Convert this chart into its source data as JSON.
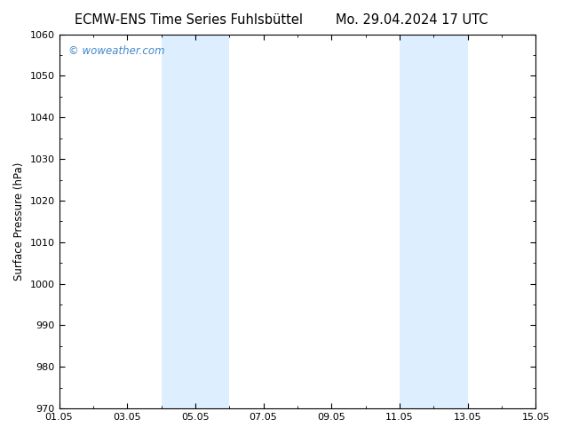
{
  "title_left": "ECMW-ENS Time Series Fuhlsbüttel",
  "title_right": "Mo. 29.04.2024 17 UTC",
  "ylabel": "Surface Pressure (hPa)",
  "ylim": [
    970,
    1060
  ],
  "yticks": [
    970,
    980,
    990,
    1000,
    1010,
    1020,
    1030,
    1040,
    1050,
    1060
  ],
  "xlim": [
    0,
    14
  ],
  "xtick_positions": [
    0,
    2,
    4,
    6,
    8,
    10,
    12,
    14
  ],
  "xtick_labels": [
    "01.05",
    "03.05",
    "05.05",
    "07.05",
    "09.05",
    "11.05",
    "13.05",
    "15.05"
  ],
  "shaded_regions": [
    {
      "xmin": 3.0,
      "xmax": 5.0
    },
    {
      "xmin": 10.0,
      "xmax": 12.0
    }
  ],
  "shade_color": "#ddeeff",
  "watermark_text": "© woweather.com",
  "watermark_color": "#4488cc",
  "background_color": "#ffffff",
  "border_color": "#000000",
  "title_fontsize": 10.5,
  "label_fontsize": 8.5,
  "tick_fontsize": 8,
  "watermark_fontsize": 8.5
}
